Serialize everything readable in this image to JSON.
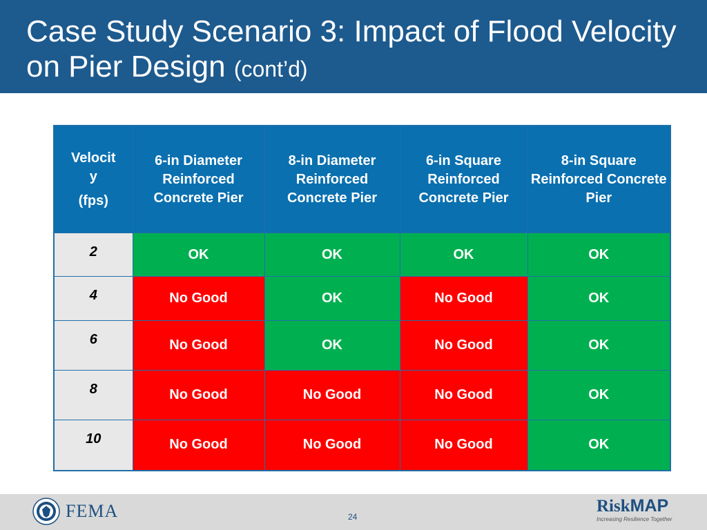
{
  "slide": {
    "title_main": "Case Study Scenario 3: Impact of Flood Velocity on Pier Design",
    "title_suffix": "(cont’d)"
  },
  "table": {
    "velocity_header_line1": "Velocit",
    "velocity_header_line2": "y",
    "velocity_header_line3": "(fps)",
    "columns": [
      "6-in Diameter Reinforced Concrete Pier",
      "8-in Diameter Reinforced Concrete Pier",
      "6-in Square Reinforced Concrete Pier",
      "8-in Square Reinforced Concrete Pier"
    ],
    "rows": [
      {
        "velocity": "2",
        "cells": [
          "OK",
          "OK",
          "OK",
          "OK"
        ]
      },
      {
        "velocity": "4",
        "cells": [
          "No Good",
          "OK",
          "No Good",
          "OK"
        ]
      },
      {
        "velocity": "6",
        "cells": [
          "No Good",
          "OK",
          "No Good",
          "OK"
        ]
      },
      {
        "velocity": "8",
        "cells": [
          "No Good",
          "No Good",
          "No Good",
          "OK"
        ]
      },
      {
        "velocity": "10",
        "cells": [
          "No Good",
          "No Good",
          "No Good",
          "OK"
        ]
      }
    ],
    "colors": {
      "ok": "#00b050",
      "no_good": "#ff0000",
      "header": "#0a70b0",
      "velocity_bg": "#e8e8e8"
    }
  },
  "footer": {
    "agency": "FEMA",
    "page_number": "24",
    "brand_left": "Risk",
    "brand_right": "MAP",
    "tagline": "Increasing Resilience Together",
    "seal_icon": "dhs-seal-icon"
  }
}
